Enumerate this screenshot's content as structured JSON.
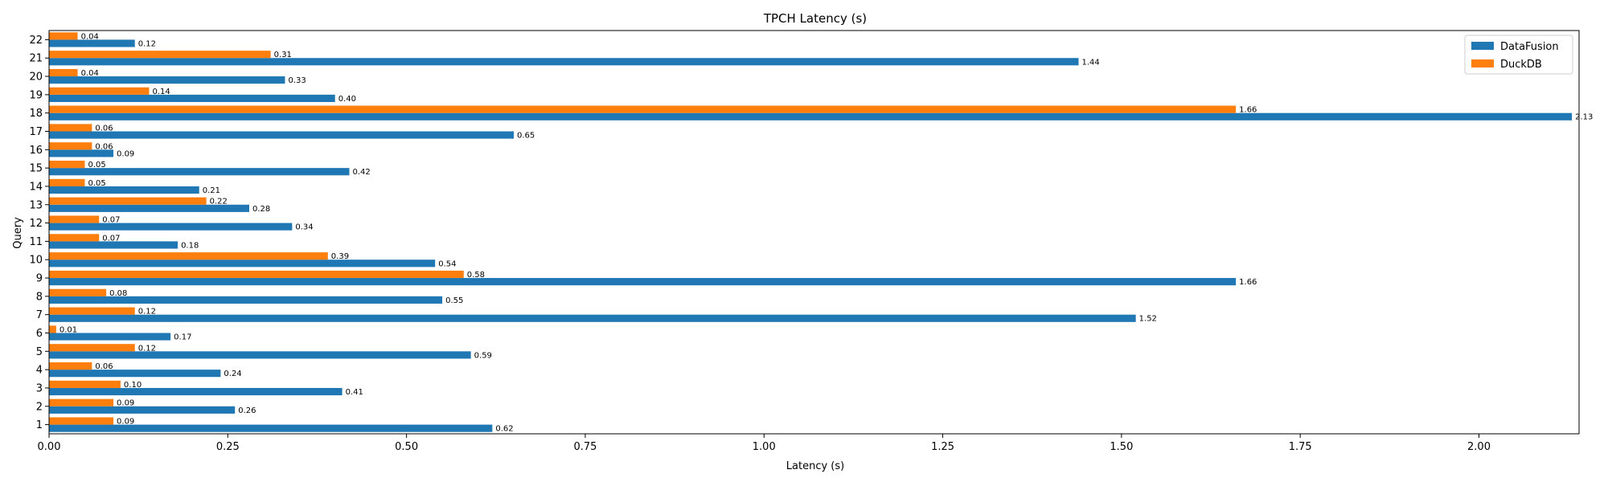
{
  "chart_data": {
    "type": "bar",
    "orientation": "horizontal",
    "title": "TPCH Latency (s)",
    "xlabel": "Latency (s)",
    "ylabel": "Query",
    "xlim": [
      0,
      2.14
    ],
    "xticks": [
      "0.00",
      "0.25",
      "0.50",
      "0.75",
      "1.00",
      "1.25",
      "1.50",
      "1.75",
      "2.00"
    ],
    "grid": false,
    "legend_position": "top-right",
    "categories": [
      "1",
      "2",
      "3",
      "4",
      "5",
      "6",
      "7",
      "8",
      "9",
      "10",
      "11",
      "12",
      "13",
      "14",
      "15",
      "16",
      "17",
      "18",
      "19",
      "20",
      "21",
      "22"
    ],
    "series": [
      {
        "name": "DataFusion",
        "color": "#1f77b4",
        "values": [
          0.62,
          0.26,
          0.41,
          0.24,
          0.59,
          0.17,
          1.52,
          0.55,
          1.66,
          0.54,
          0.18,
          0.34,
          0.28,
          0.21,
          0.42,
          0.09,
          0.65,
          2.13,
          0.4,
          0.33,
          1.44,
          0.12
        ]
      },
      {
        "name": "DuckDB",
        "color": "#ff7f0e",
        "values": [
          0.09,
          0.09,
          0.1,
          0.06,
          0.12,
          0.01,
          0.12,
          0.08,
          0.58,
          0.39,
          0.07,
          0.07,
          0.22,
          0.05,
          0.05,
          0.06,
          0.06,
          1.66,
          0.14,
          0.04,
          0.31,
          0.04
        ]
      }
    ]
  }
}
